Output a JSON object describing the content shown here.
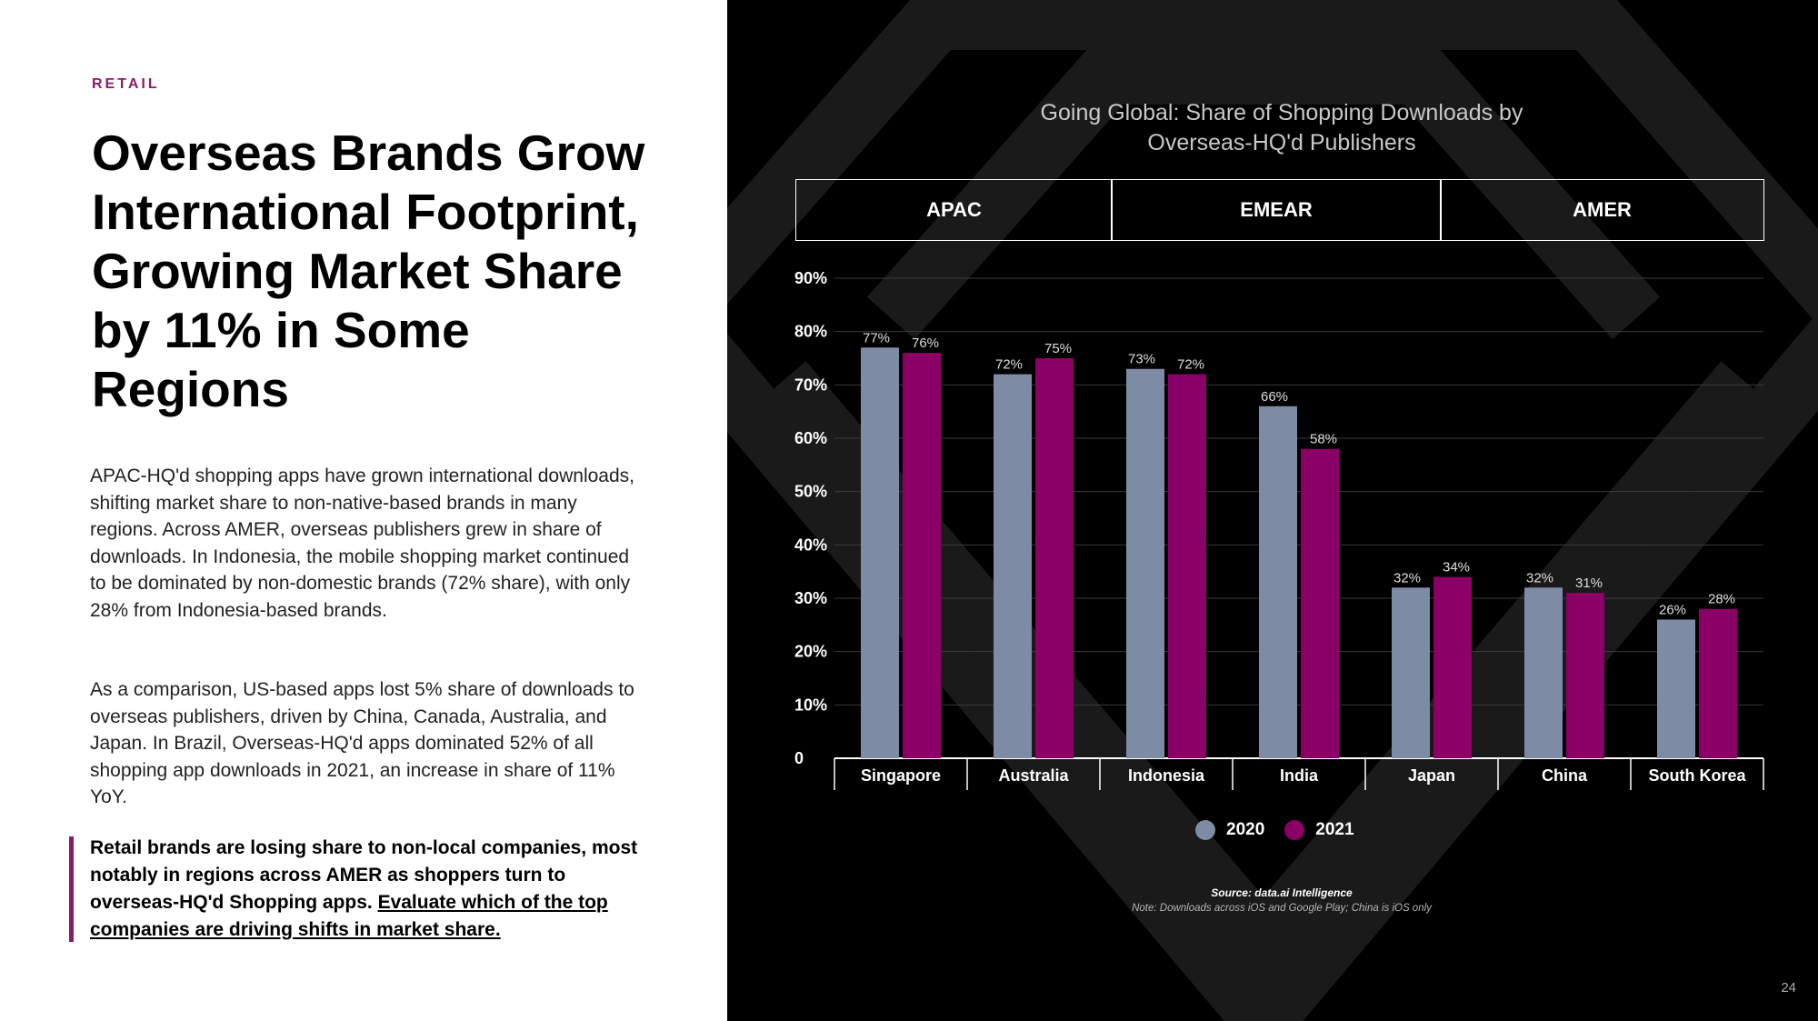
{
  "section_label": "RETAIL",
  "headline": "Overseas Brands Grow International Footprint, Growing Market Share by 11% in Some Regions",
  "paragraphs": [
    "APAC-HQ'd shopping apps have grown international downloads, shifting market share to non-native-based brands in many regions. Across AMER, overseas publishers grew in share of downloads. In Indonesia, the mobile shopping market continued to be dominated by non-domestic brands (72% share), with only 28% from Indonesia-based brands.",
    "As a comparison, US-based apps lost 5% share of downloads to overseas publishers, driven by China, Canada, Australia, and Japan. In Brazil, Overseas-HQ'd apps dominated 52% of all shopping app downloads in 2021, an increase in share of 11% YoY."
  ],
  "callout": {
    "text": "Retail brands are losing share to non-local companies, most notably in regions across AMER as shoppers turn to overseas-HQ'd Shopping apps. ",
    "link_text": "Evaluate which of the top companies are driving shifts in market share."
  },
  "colors": {
    "accent": "#8c1a6a",
    "series_2020": "#7e8ba5",
    "series_2021": "#8a0066",
    "background_dark": "#000000"
  },
  "chart_data": {
    "type": "bar",
    "title": "Going Global: Share of Shopping Downloads by Overseas-HQ'd Publishers",
    "title_lines": [
      "Going Global: Share of Shopping Downloads by",
      "Overseas-HQ'd Publishers"
    ],
    "regions": [
      {
        "label": "APAC",
        "categories": [
          "Singapore",
          "Australia"
        ]
      },
      {
        "label": "EMEAR",
        "categories": [
          "Indonesia",
          "India"
        ]
      },
      {
        "label": "AMER",
        "categories": [
          "Japan",
          "China",
          "South Korea"
        ]
      }
    ],
    "categories": [
      "Singapore",
      "Australia",
      "Indonesia",
      "India",
      "Japan",
      "China",
      "South Korea"
    ],
    "series": [
      {
        "name": "2020",
        "values": [
          77,
          72,
          73,
          66,
          32,
          32,
          26
        ]
      },
      {
        "name": "2021",
        "values": [
          76,
          75,
          72,
          58,
          34,
          31,
          28
        ]
      }
    ],
    "ylim": [
      0,
      90
    ],
    "yticks": [
      0,
      10,
      20,
      30,
      40,
      50,
      60,
      70,
      80,
      90
    ],
    "ytick_labels": [
      "0",
      "10%",
      "20%",
      "30%",
      "40%",
      "50%",
      "60%",
      "70%",
      "80%",
      "90%"
    ],
    "value_suffix": "%",
    "grid": true,
    "legend": "bottom-center",
    "xlabel": "",
    "ylabel": ""
  },
  "source": "Source: data.ai Intelligence",
  "note": "Note: Downloads across iOS and Google Play; China is iOS only",
  "page_number": "24"
}
